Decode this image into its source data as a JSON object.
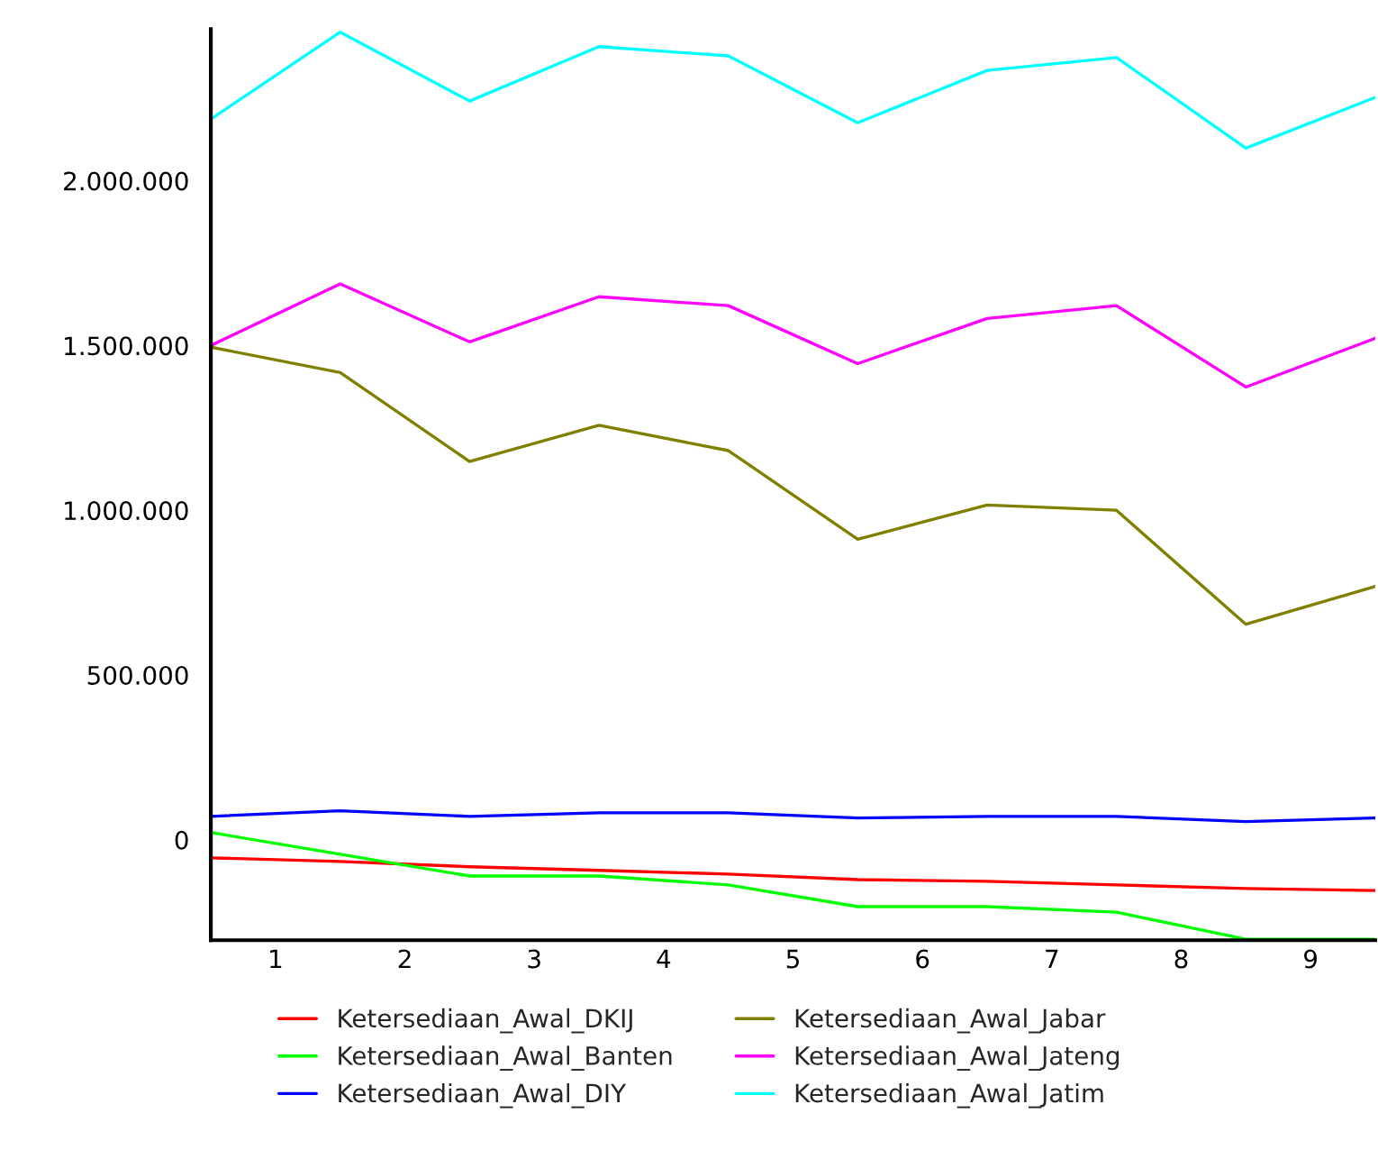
{
  "chart_data": {
    "type": "line",
    "x": [
      0.5,
      1.5,
      2.5,
      3.5,
      4.5,
      5.5,
      6.5,
      7.5,
      8.5,
      9.5
    ],
    "xlim": [
      0.5,
      9.5
    ],
    "xticks": [
      {
        "value": 1,
        "label": "1"
      },
      {
        "value": 2,
        "label": "2"
      },
      {
        "value": 3,
        "label": "3"
      },
      {
        "value": 4,
        "label": "4"
      },
      {
        "value": 5,
        "label": "5"
      },
      {
        "value": 6,
        "label": "6"
      },
      {
        "value": 7,
        "label": "7"
      },
      {
        "value": 8,
        "label": "8"
      },
      {
        "value": 9,
        "label": "9"
      }
    ],
    "ylim": [
      -305000,
      2460000
    ],
    "yticks": [
      {
        "value": 0,
        "label": "0"
      },
      {
        "value": 500000,
        "label": "500.000"
      },
      {
        "value": 1000000,
        "label": "1.000.000"
      },
      {
        "value": 1500000,
        "label": "1.500.000"
      },
      {
        "value": 2000000,
        "label": "2.000.000"
      }
    ],
    "grid": false,
    "legend": "bottom",
    "marker": "none",
    "line_style": "solid",
    "series": [
      {
        "name": "Ketersediaan_Awal_DKIJ",
        "color": "#ff0000",
        "values": [
          -55000,
          -66000,
          -82000,
          -93000,
          -104000,
          -121000,
          -126000,
          -137000,
          -148000,
          -154000
        ]
      },
      {
        "name": "Ketersediaan_Awal_Banten",
        "color": "#00ff00",
        "values": [
          22000,
          -44000,
          -110000,
          -110000,
          -137000,
          -203000,
          -203000,
          -220000,
          -302000,
          -302000
        ]
      },
      {
        "name": "Ketersediaan_Awal_DIY",
        "color": "#0000ff",
        "values": [
          71000,
          88000,
          71000,
          82000,
          82000,
          66000,
          71000,
          71000,
          55000,
          66000
        ]
      },
      {
        "name": "Ketersediaan_Awal_Jabar",
        "color": "#808000",
        "values": [
          1495000,
          1418000,
          1148000,
          1258000,
          1181000,
          912000,
          1016000,
          1000000,
          654000,
          769000
        ]
      },
      {
        "name": "Ketersediaan_Awal_Jateng",
        "color": "#ff00ff",
        "values": [
          1500000,
          1687000,
          1511000,
          1648000,
          1621000,
          1445000,
          1582000,
          1621000,
          1374000,
          1522000
        ]
      },
      {
        "name": "Ketersediaan_Awal_Jatim",
        "color": "#00ffff",
        "values": [
          2187000,
          2451000,
          2242000,
          2407000,
          2379000,
          2176000,
          2335000,
          2374000,
          2099000,
          2253000
        ]
      }
    ]
  }
}
